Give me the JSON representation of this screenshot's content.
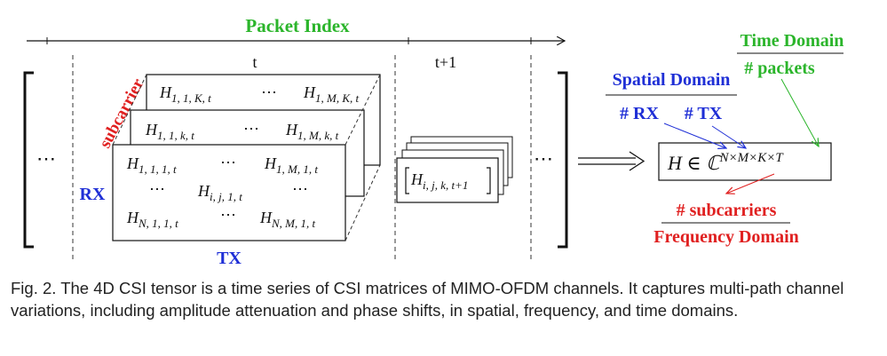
{
  "diagram": {
    "packet_index_label": "Packet Index",
    "time_t": "t",
    "time_t1": "t+1",
    "ellipsis": "⋯",
    "subcarrier_label": "subcarrier",
    "rx_label": "RX",
    "tx_label": "TX",
    "matrix_front": {
      "r1c1": {
        "base": "H",
        "sub": "1, 1, 1, t"
      },
      "r1c3": {
        "base": "H",
        "sub": "1, M, 1, t"
      },
      "r2c2": {
        "base": "H",
        "sub": "i, j, 1, t"
      },
      "r3c1": {
        "base": "H",
        "sub": "N, 1, 1, t"
      },
      "r3c3": {
        "base": "H",
        "sub": "N, M, 1, t"
      }
    },
    "matrix_mid": {
      "left": {
        "base": "H",
        "sub": "1, 1, k, t"
      },
      "right": {
        "base": "H",
        "sub": "1, M, k, t"
      }
    },
    "matrix_back": {
      "left": {
        "base": "H",
        "sub": "1, 1, K, t"
      },
      "right": {
        "base": "H",
        "sub": "1, M, K, t"
      }
    },
    "matrix_next": {
      "base": "H",
      "sub": "i, j, k, t+1"
    },
    "tensor": {
      "lhs": "H ∈ ℂ",
      "sup": "N×M×K×T"
    },
    "time_domain_label": "Time Domain",
    "packets_label": "# packets",
    "spatial_domain_label": "Spatial Domain",
    "rx_count_label": "# RX",
    "tx_count_label": "# TX",
    "subcarriers_label": "# subcarriers",
    "frequency_domain_label": "Frequency Domain"
  },
  "colors": {
    "green": "#2bb52b",
    "blue": "#1f2fd6",
    "red": "#e02020",
    "black": "#111111"
  },
  "caption": "Fig. 2.  The 4D CSI tensor is a time series of CSI matrices of MIMO-OFDM channels. It captures multi-path channel variations, including amplitude attenuation and phase shifts, in spatial, frequency, and time domains."
}
